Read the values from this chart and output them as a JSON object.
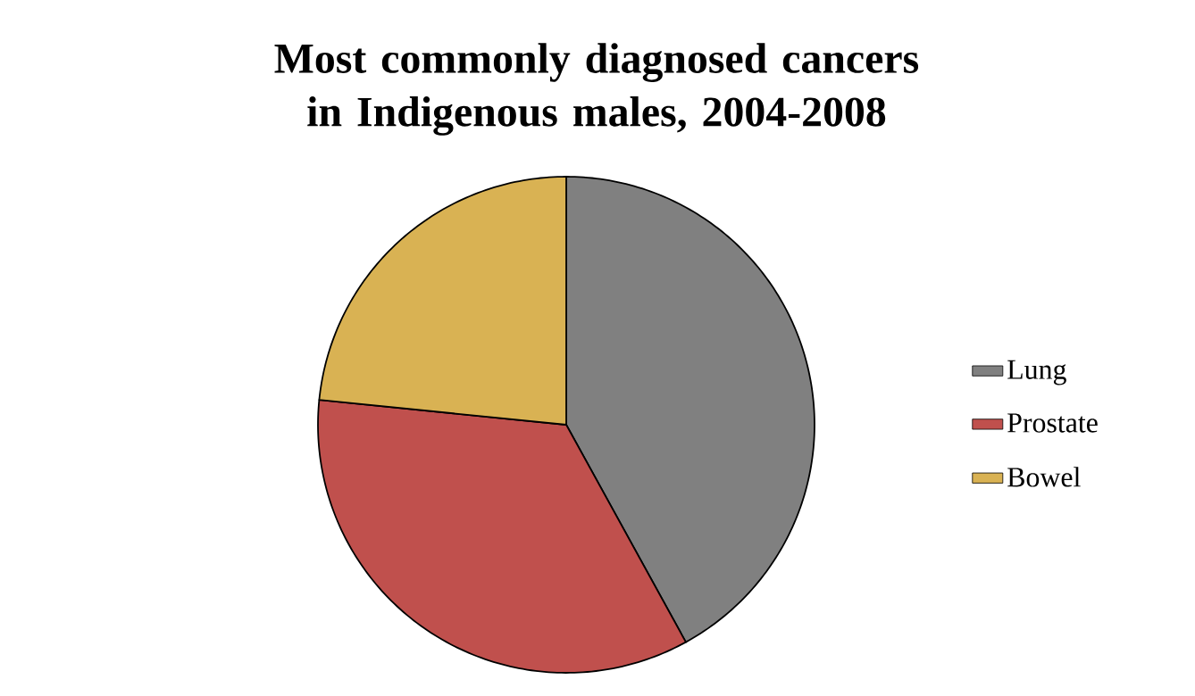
{
  "chart_data": {
    "type": "pie",
    "title": "Most commonly diagnosed cancers in Indigenous males, 2004-2008",
    "categories": [
      "Lung",
      "Prostate",
      "Bowel"
    ],
    "values": [
      42,
      34.6,
      23.4
    ],
    "colors": [
      "#808080",
      "#c0504d",
      "#d9b253"
    ],
    "legend": "right"
  }
}
